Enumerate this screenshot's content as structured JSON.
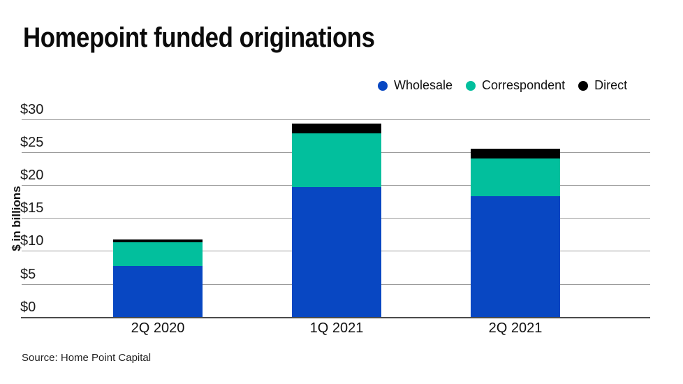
{
  "header": {
    "title": "Homepoint funded originations"
  },
  "chart_data": {
    "type": "bar",
    "stacked": true,
    "title": "Homepoint funded originations",
    "categories": [
      "2Q 2020",
      "1Q 2021",
      "2Q 2021"
    ],
    "series": [
      {
        "name": "Wholesale",
        "color": "#0847c2",
        "values": [
          7.7,
          19.7,
          18.3
        ]
      },
      {
        "name": "Correspondent",
        "color": "#02bf9d",
        "values": [
          3.6,
          8.2,
          5.8
        ]
      },
      {
        "name": "Direct",
        "color": "#000000",
        "values": [
          0.5,
          1.5,
          1.4
        ]
      }
    ],
    "totals": [
      11.8,
      29.4,
      25.5
    ],
    "xlabel": "",
    "ylabel": "$ in billions",
    "ylim": [
      0,
      30
    ],
    "ytick_step": 5,
    "ytick_prefix": "$",
    "ytick_labels": [
      "$0",
      "$5",
      "$10",
      "$15",
      "$20",
      "$25",
      "$30"
    ],
    "grid": true,
    "legend_position": "top-right"
  },
  "footer": {
    "source": "Source: Home Point Capital"
  },
  "colors": {
    "wholesale_blue": "#0847c2",
    "correspondent_teal": "#02bf9d",
    "direct_black": "#000000",
    "gridline_gray": "#9b9b9b",
    "axis_gray": "#4b4b4b"
  }
}
